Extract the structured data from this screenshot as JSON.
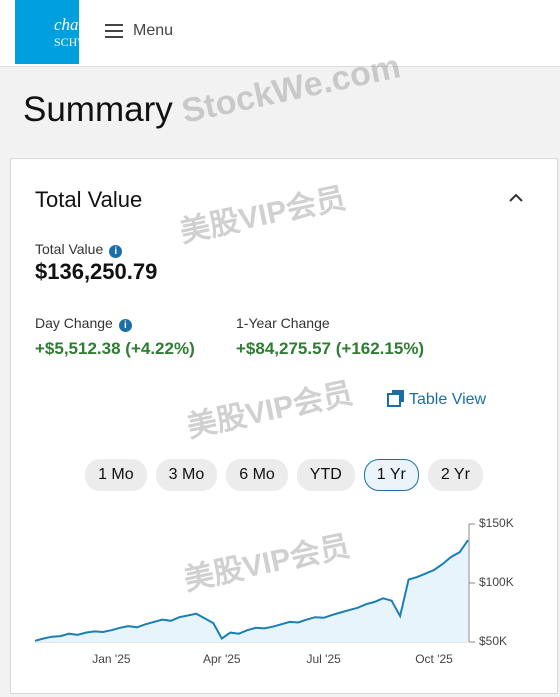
{
  "header": {
    "logo_line1": "charles",
    "logo_line2": "SCHWAB",
    "menu": "Menu"
  },
  "page_title": "Summary",
  "card": {
    "title": "Total Value",
    "total_value_label": "Total Value",
    "total_value": "$136,250.79",
    "day_change_label": "Day Change",
    "day_change": "+$5,512.38 (+4.22%)",
    "year_change_label": "1-Year Change",
    "year_change": "+$84,275.57 (+162.15%)",
    "table_view": "Table View",
    "ranges": [
      "1 Mo",
      "3 Mo",
      "6 Mo",
      "YTD",
      "1 Yr",
      "2 Yr"
    ],
    "selected_range_index": 4
  },
  "chart_data": {
    "type": "area",
    "color": "#1a7fb5",
    "fill": "#e8f4fb",
    "categories": [
      null,
      null,
      null,
      null,
      null,
      null,
      null,
      null,
      null,
      "Jan '25",
      null,
      null,
      null,
      null,
      null,
      null,
      null,
      null,
      null,
      null,
      null,
      null,
      "Apr '25",
      null,
      null,
      null,
      null,
      null,
      null,
      null,
      null,
      null,
      null,
      null,
      "Jul '25",
      null,
      null,
      null,
      null,
      null,
      null,
      null,
      null,
      null,
      null,
      null,
      null,
      "Oct '25",
      null,
      null,
      null,
      null
    ],
    "values": [
      51000,
      53000,
      54500,
      55000,
      57000,
      56000,
      58000,
      59000,
      58500,
      60000,
      62000,
      63500,
      62500,
      65000,
      67000,
      69000,
      68000,
      71000,
      72500,
      74000,
      70000,
      66000,
      53000,
      58000,
      57000,
      60000,
      62000,
      61500,
      63000,
      65000,
      67000,
      66500,
      69000,
      71000,
      70500,
      73000,
      75000,
      77000,
      79000,
      82000,
      84000,
      87000,
      85000,
      72000,
      103000,
      105000,
      108000,
      111000,
      116000,
      122000,
      126000,
      136250.79
    ],
    "ylim": [
      50000,
      150000
    ],
    "yticks": [
      {
        "value": 50000,
        "label": "$50K"
      },
      {
        "value": 100000,
        "label": "$100K"
      },
      {
        "value": 150000,
        "label": "$150K"
      }
    ],
    "y_axis_side": "right"
  },
  "watermarks": [
    "StockWe.com",
    "美股VIP会员",
    "美股VIP会员",
    "美股VIP会员"
  ]
}
